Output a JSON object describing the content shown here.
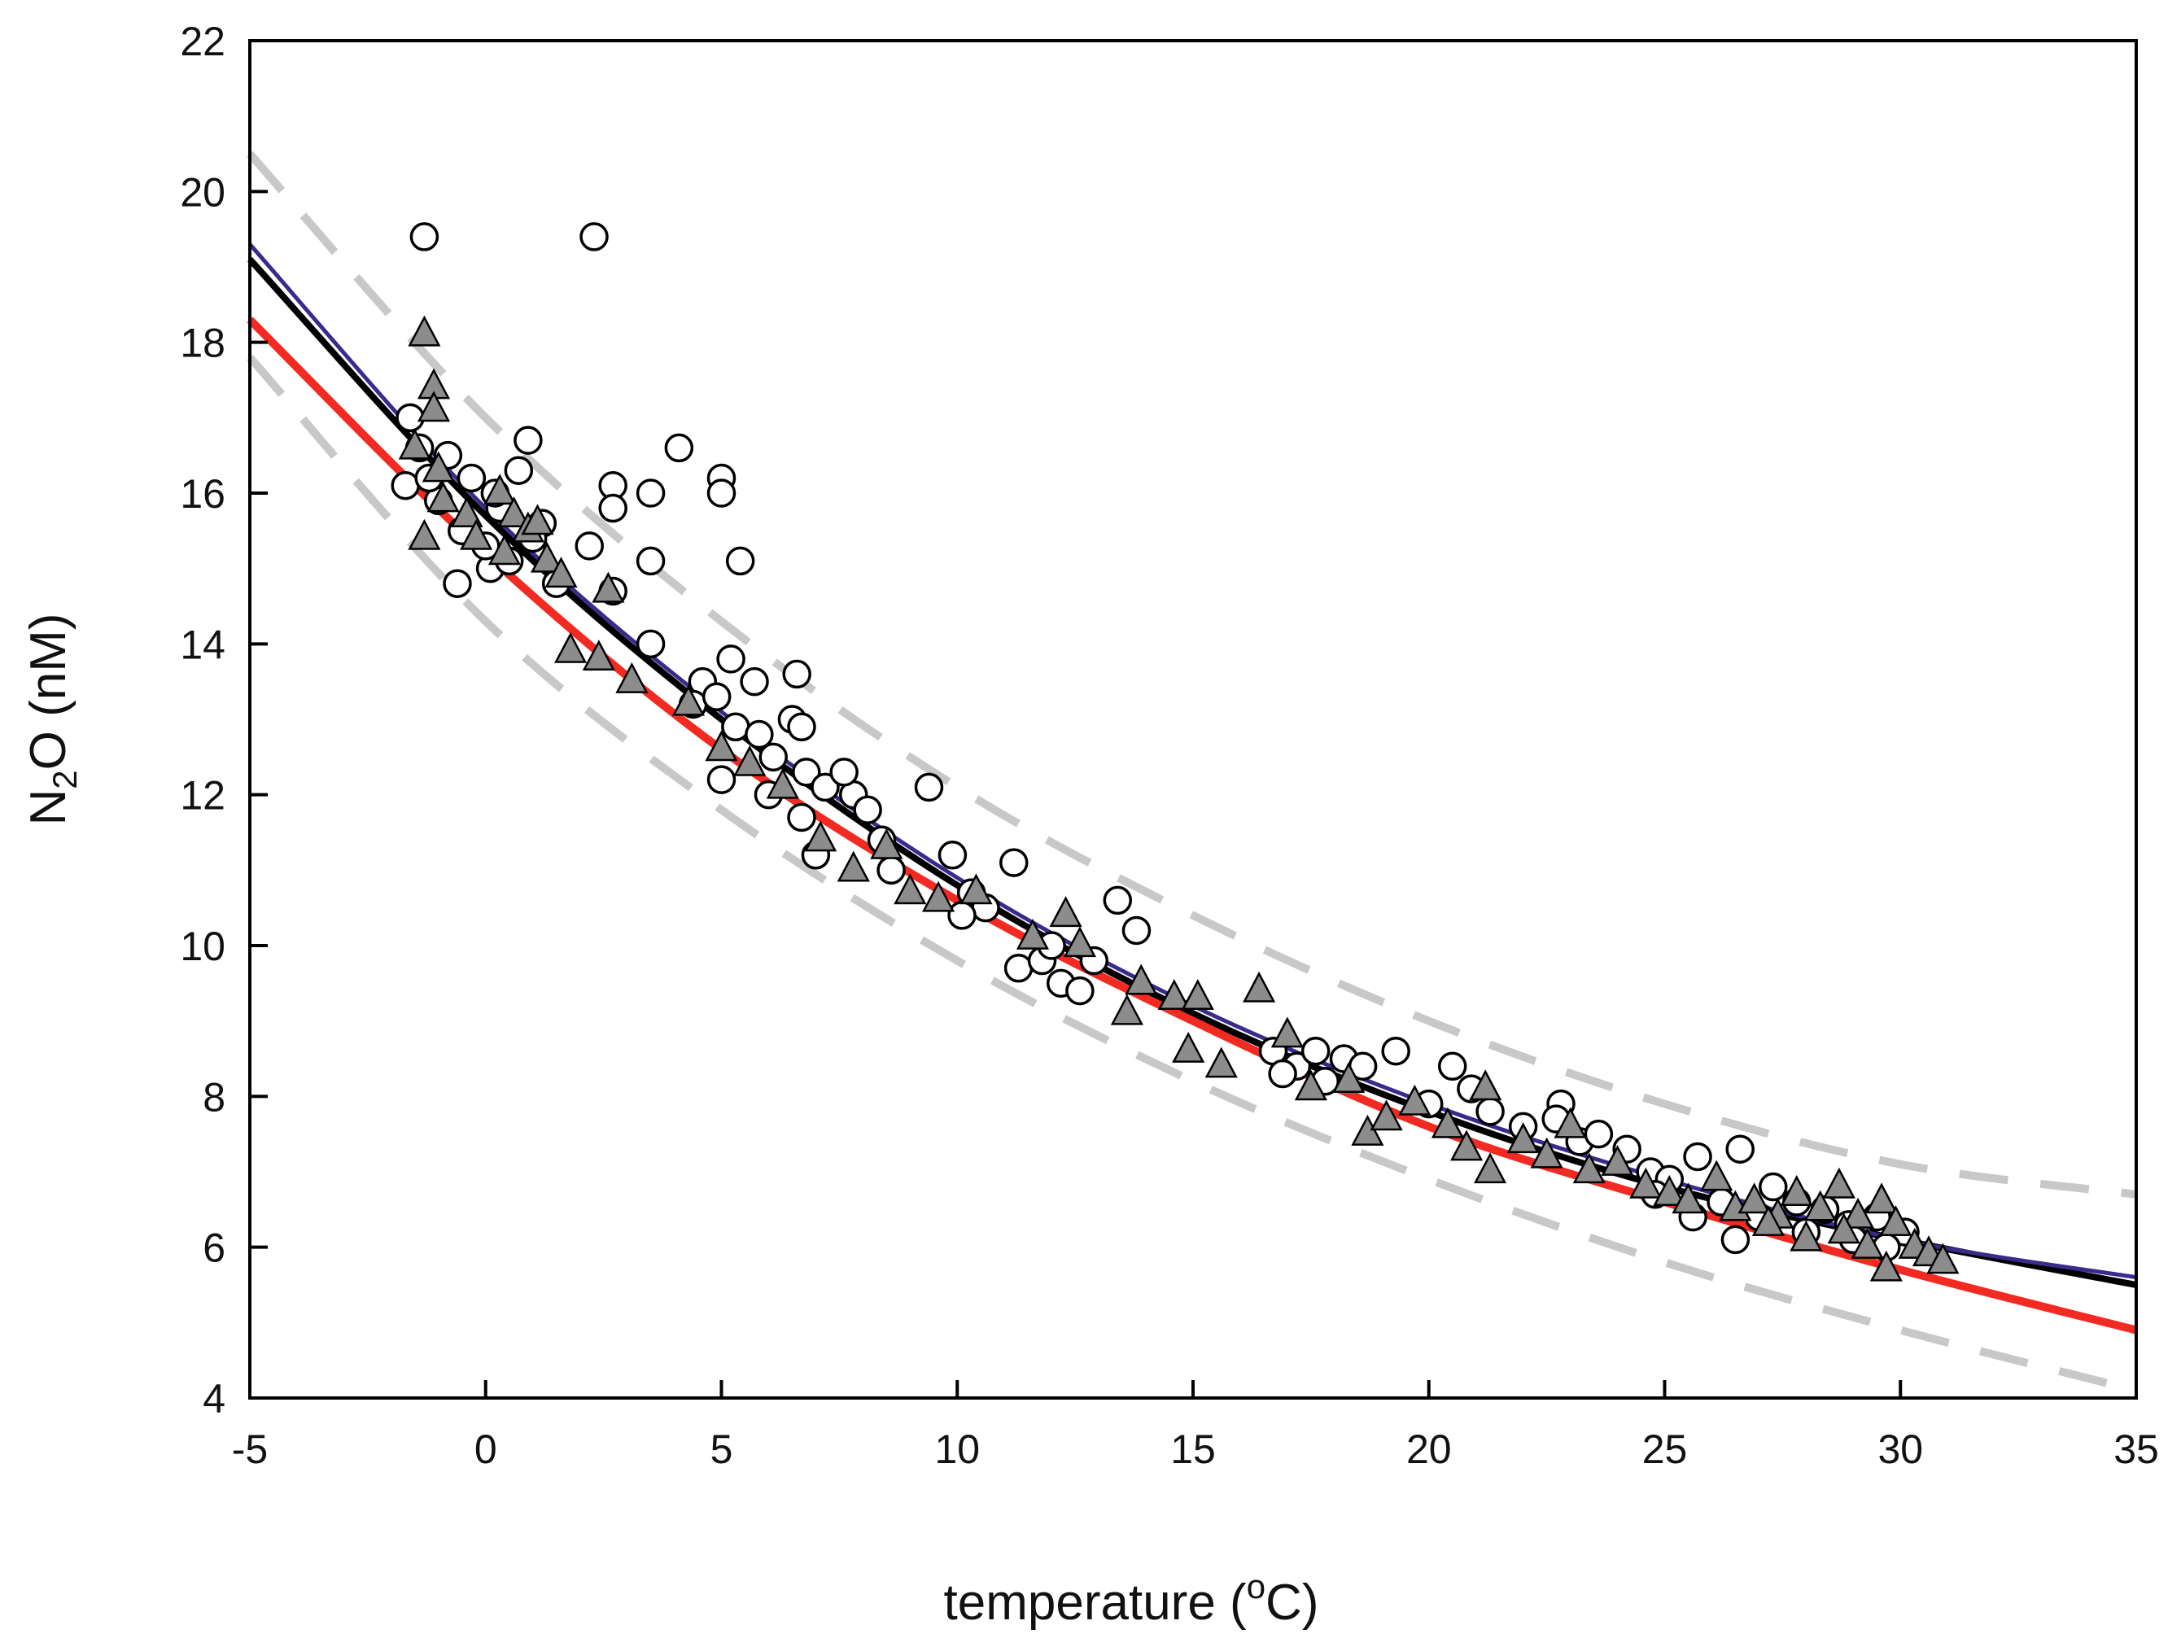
{
  "chart_data": {
    "type": "scatter",
    "title": "",
    "xlabel": {
      "prefix": "temperature (",
      "superscript": "o",
      "suffix": "C)"
    },
    "ylabel": {
      "prefix": "N",
      "subscript": "2",
      "suffix": "O (nM)"
    },
    "xlim": [
      -5,
      35
    ],
    "ylim": [
      4,
      22
    ],
    "xticks": [
      -5,
      0,
      5,
      10,
      15,
      20,
      25,
      30,
      35
    ],
    "yticks": [
      4,
      6,
      8,
      10,
      12,
      14,
      16,
      18,
      20,
      22
    ],
    "grid": false,
    "legend": "none",
    "series": [
      {
        "marker": "open-circle",
        "color": "#000000",
        "points": [
          [
            -1.3,
            19.4
          ],
          [
            2.3,
            19.4
          ],
          [
            4.1,
            16.6
          ],
          [
            5.0,
            16.2
          ],
          [
            5.0,
            16.0
          ],
          [
            3.5,
            16.0
          ],
          [
            2.7,
            16.1
          ],
          [
            2.7,
            15.8
          ],
          [
            0.9,
            16.7
          ],
          [
            2.2,
            15.3
          ],
          [
            5.4,
            15.1
          ],
          [
            3.5,
            15.1
          ],
          [
            3.5,
            14.0
          ],
          [
            -0.6,
            14.8
          ],
          [
            2.7,
            14.7
          ],
          [
            0.1,
            15.0
          ],
          [
            -1.6,
            17.0
          ],
          [
            -1.4,
            16.6
          ],
          [
            -1.7,
            16.1
          ],
          [
            -0.8,
            16.5
          ],
          [
            -0.3,
            16.2
          ],
          [
            0.3,
            15.8
          ],
          [
            0.7,
            16.3
          ],
          [
            1.2,
            15.6
          ],
          [
            -1.0,
            15.9
          ],
          [
            -0.5,
            15.5
          ],
          [
            0.0,
            15.3
          ],
          [
            0.5,
            15.1
          ],
          [
            1.0,
            15.4
          ],
          [
            1.5,
            14.8
          ],
          [
            -1.2,
            16.2
          ],
          [
            0.2,
            16.0
          ],
          [
            5.2,
            13.8
          ],
          [
            5.7,
            13.5
          ],
          [
            6.6,
            13.6
          ],
          [
            6.5,
            13.0
          ],
          [
            6.7,
            12.9
          ],
          [
            4.6,
            13.5
          ],
          [
            4.4,
            13.2
          ],
          [
            4.9,
            13.3
          ],
          [
            5.3,
            12.9
          ],
          [
            5.8,
            12.8
          ],
          [
            6.1,
            12.5
          ],
          [
            6.8,
            12.3
          ],
          [
            7.2,
            12.1
          ],
          [
            7.8,
            12.0
          ],
          [
            7.6,
            12.3
          ],
          [
            8.1,
            11.8
          ],
          [
            5.0,
            12.2
          ],
          [
            6.0,
            12.0
          ],
          [
            6.7,
            11.7
          ],
          [
            7.0,
            11.2
          ],
          [
            8.4,
            11.4
          ],
          [
            8.6,
            11.0
          ],
          [
            9.4,
            12.1
          ],
          [
            9.9,
            11.2
          ],
          [
            10.3,
            10.7
          ],
          [
            10.6,
            10.5
          ],
          [
            10.1,
            10.4
          ],
          [
            11.2,
            11.1
          ],
          [
            11.3,
            9.7
          ],
          [
            11.8,
            9.8
          ],
          [
            12.2,
            9.5
          ],
          [
            12.6,
            9.4
          ],
          [
            13.4,
            10.6
          ],
          [
            13.8,
            10.2
          ],
          [
            12.0,
            10.0
          ],
          [
            12.9,
            9.8
          ],
          [
            16.7,
            8.6
          ],
          [
            17.2,
            8.4
          ],
          [
            17.6,
            8.6
          ],
          [
            18.2,
            8.5
          ],
          [
            16.9,
            8.3
          ],
          [
            17.8,
            8.2
          ],
          [
            18.6,
            8.4
          ],
          [
            19.3,
            8.6
          ],
          [
            20.0,
            7.9
          ],
          [
            20.5,
            8.4
          ],
          [
            20.9,
            8.1
          ],
          [
            21.3,
            7.8
          ],
          [
            22.0,
            7.6
          ],
          [
            22.8,
            7.9
          ],
          [
            22.7,
            7.7
          ],
          [
            23.2,
            7.4
          ],
          [
            23.6,
            7.5
          ],
          [
            24.2,
            7.3
          ],
          [
            24.7,
            7.0
          ],
          [
            25.1,
            6.9
          ],
          [
            25.7,
            7.2
          ],
          [
            26.6,
            7.3
          ],
          [
            26.2,
            6.6
          ],
          [
            26.5,
            6.1
          ],
          [
            25.6,
            6.4
          ],
          [
            24.8,
            6.7
          ],
          [
            27.3,
            6.8
          ],
          [
            27.8,
            6.6
          ],
          [
            28.4,
            6.5
          ],
          [
            28.9,
            6.3
          ],
          [
            29.5,
            6.4
          ],
          [
            30.1,
            6.2
          ],
          [
            27.0,
            6.4
          ],
          [
            28.0,
            6.2
          ],
          [
            29.0,
            6.1
          ],
          [
            29.7,
            6.0
          ]
        ]
      },
      {
        "marker": "filled-triangle",
        "color": "#8c8c8c",
        "points": [
          [
            -1.3,
            18.1
          ],
          [
            -1.1,
            17.4
          ],
          [
            -1.1,
            17.1
          ],
          [
            -1.5,
            16.6
          ],
          [
            -1.0,
            16.3
          ],
          [
            -1.3,
            15.4
          ],
          [
            -0.9,
            15.9
          ],
          [
            -0.4,
            15.7
          ],
          [
            0.3,
            16.0
          ],
          [
            0.6,
            15.7
          ],
          [
            0.9,
            15.5
          ],
          [
            1.1,
            15.6
          ],
          [
            0.4,
            15.2
          ],
          [
            1.3,
            15.1
          ],
          [
            1.6,
            14.9
          ],
          [
            -0.2,
            15.4
          ],
          [
            2.6,
            14.7
          ],
          [
            1.8,
            13.9
          ],
          [
            2.4,
            13.8
          ],
          [
            3.1,
            13.5
          ],
          [
            4.3,
            13.2
          ],
          [
            5.0,
            12.6
          ],
          [
            5.6,
            12.4
          ],
          [
            6.3,
            12.1
          ],
          [
            7.1,
            11.4
          ],
          [
            7.8,
            11.0
          ],
          [
            8.5,
            11.3
          ],
          [
            9.0,
            10.7
          ],
          [
            9.6,
            10.6
          ],
          [
            10.4,
            10.7
          ],
          [
            12.3,
            10.4
          ],
          [
            12.6,
            10.0
          ],
          [
            11.6,
            10.1
          ],
          [
            13.6,
            9.1
          ],
          [
            13.9,
            9.5
          ],
          [
            14.6,
            9.3
          ],
          [
            15.1,
            9.3
          ],
          [
            14.9,
            8.6
          ],
          [
            15.6,
            8.4
          ],
          [
            16.4,
            9.4
          ],
          [
            17.0,
            8.8
          ],
          [
            17.5,
            8.1
          ],
          [
            18.3,
            8.2
          ],
          [
            18.7,
            7.5
          ],
          [
            19.1,
            7.7
          ],
          [
            19.7,
            7.9
          ],
          [
            20.4,
            7.6
          ],
          [
            20.8,
            7.3
          ],
          [
            21.2,
            8.1
          ],
          [
            21.3,
            7.0
          ],
          [
            22.0,
            7.4
          ],
          [
            22.5,
            7.2
          ],
          [
            23.0,
            7.6
          ],
          [
            23.4,
            7.0
          ],
          [
            24.0,
            7.1
          ],
          [
            24.6,
            6.8
          ],
          [
            25.1,
            6.7
          ],
          [
            25.5,
            6.6
          ],
          [
            26.1,
            6.9
          ],
          [
            26.5,
            6.5
          ],
          [
            26.9,
            6.6
          ],
          [
            27.4,
            6.4
          ],
          [
            27.8,
            6.7
          ],
          [
            28.3,
            6.5
          ],
          [
            28.7,
            6.8
          ],
          [
            29.1,
            6.4
          ],
          [
            29.6,
            6.6
          ],
          [
            29.9,
            6.3
          ],
          [
            30.3,
            6.0
          ],
          [
            30.6,
            5.9
          ],
          [
            29.7,
            5.7
          ],
          [
            30.9,
            5.8
          ],
          [
            28.0,
            6.1
          ],
          [
            27.2,
            6.3
          ],
          [
            29.3,
            6.0
          ],
          [
            28.8,
            6.2
          ]
        ]
      }
    ],
    "fit_curves": [
      {
        "style": "solid",
        "color": "#000000",
        "width": 8,
        "x": [
          -5,
          0,
          5,
          10,
          15,
          20,
          25,
          30,
          35
        ],
        "y": [
          19.1,
          15.7,
          13.0,
          10.8,
          9.1,
          7.8,
          6.8,
          6.1,
          5.5
        ]
      },
      {
        "style": "solid",
        "color": "#3b2a8c",
        "width": 5,
        "x": [
          -5,
          0,
          5,
          10,
          15,
          20,
          25,
          30,
          35
        ],
        "y": [
          19.3,
          15.8,
          13.1,
          10.9,
          9.2,
          7.9,
          6.9,
          6.1,
          5.6
        ]
      },
      {
        "style": "solid",
        "color": "#f22a22",
        "width": 10,
        "x": [
          -5,
          0,
          5,
          10,
          15,
          20,
          25,
          30,
          35
        ],
        "y": [
          18.3,
          15.2,
          12.6,
          10.6,
          9.0,
          7.6,
          6.6,
          5.7,
          4.9
        ]
      },
      {
        "style": "dashed",
        "color": "#c8c8c8",
        "width": 10,
        "x": [
          -5,
          0,
          5,
          10,
          15,
          20,
          25,
          30,
          35
        ],
        "y": [
          20.5,
          17.0,
          14.3,
          12.1,
          10.4,
          9.0,
          7.9,
          7.1,
          6.7
        ]
      },
      {
        "style": "dashed",
        "color": "#c8c8c8",
        "width": 10,
        "x": [
          -5,
          0,
          5,
          10,
          15,
          20,
          25,
          30,
          35
        ],
        "y": [
          17.8,
          14.3,
          11.8,
          9.8,
          8.2,
          6.9,
          5.8,
          4.9,
          4.1
        ]
      }
    ]
  }
}
